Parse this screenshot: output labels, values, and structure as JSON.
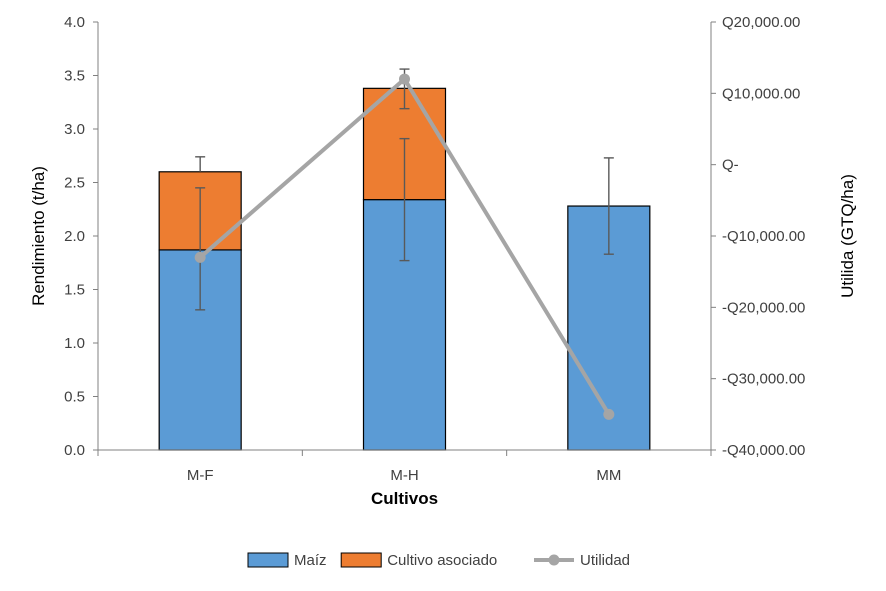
{
  "chart_data": {
    "type": "bar",
    "stacked": true,
    "categories": [
      "M-F",
      "M-H",
      "MM"
    ],
    "series": [
      {
        "name": "Maíz",
        "kind": "bar",
        "color": "#5B9BD5",
        "values": [
          1.87,
          2.34,
          2.28
        ]
      },
      {
        "name": "Cultivo asociado",
        "kind": "bar",
        "color": "#ED7D31",
        "values": [
          0.73,
          1.04,
          0
        ]
      },
      {
        "name": "Utilidad",
        "kind": "line",
        "axis": "right",
        "color": "#A5A5A5",
        "values": [
          -13000,
          12000,
          -35000
        ]
      }
    ],
    "error_bars": [
      {
        "category": "M-F",
        "segment": "Maíz",
        "center": 1.87,
        "low": 1.31,
        "high": 2.45
      },
      {
        "category": "M-F",
        "segment": "Total",
        "center": 2.6,
        "low": 2.6,
        "high": 2.74
      },
      {
        "category": "M-H",
        "segment": "Maíz",
        "center": 2.34,
        "low": 1.77,
        "high": 2.91
      },
      {
        "category": "M-H",
        "segment": "Total",
        "center": 3.38,
        "low": 3.19,
        "high": 3.56
      },
      {
        "category": "MM",
        "segment": "Maíz",
        "center": 2.28,
        "low": 1.83,
        "high": 2.73
      }
    ],
    "xlabel": "Cultivos",
    "ylabel": "Rendimiento (t/ha)",
    "y2label": "Utilida (GTQ/ha)",
    "ylim": [
      0,
      4
    ],
    "yticks": [
      "0.0",
      "0.5",
      "1.0",
      "1.5",
      "2.0",
      "2.5",
      "3.0",
      "3.5",
      "4.0"
    ],
    "y2lim": [
      -40000,
      20000
    ],
    "y2ticks": [
      "-Q40,000.00",
      "-Q30,000.00",
      "-Q20,000.00",
      "-Q10,000.00",
      "Q-",
      "Q10,000.00",
      "Q20,000.00"
    ],
    "grid": false,
    "legend_position": "bottom",
    "legend": [
      "Maíz",
      "Cultivo asociado",
      "Utilidad"
    ]
  }
}
